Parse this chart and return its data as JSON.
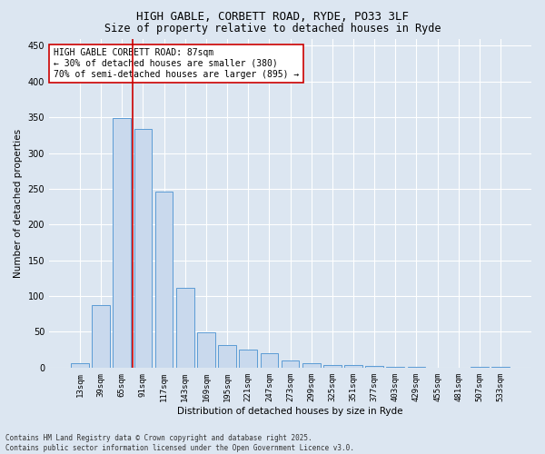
{
  "title1": "HIGH GABLE, CORBETT ROAD, RYDE, PO33 3LF",
  "title2": "Size of property relative to detached houses in Ryde",
  "xlabel": "Distribution of detached houses by size in Ryde",
  "ylabel": "Number of detached properties",
  "categories": [
    "13sqm",
    "39sqm",
    "65sqm",
    "91sqm",
    "117sqm",
    "143sqm",
    "169sqm",
    "195sqm",
    "221sqm",
    "247sqm",
    "273sqm",
    "299sqm",
    "325sqm",
    "351sqm",
    "377sqm",
    "403sqm",
    "429sqm",
    "455sqm",
    "481sqm",
    "507sqm",
    "533sqm"
  ],
  "values": [
    6,
    88,
    349,
    334,
    246,
    112,
    49,
    32,
    25,
    20,
    10,
    6,
    4,
    3,
    2,
    1,
    1,
    0,
    0,
    1,
    1
  ],
  "bar_color": "#c9d9ed",
  "bar_edge_color": "#5b9bd5",
  "vline_color": "#cc0000",
  "annotation_box_text": "HIGH GABLE CORBETT ROAD: 87sqm\n← 30% of detached houses are smaller (380)\n70% of semi-detached houses are larger (895) →",
  "annotation_box_color": "#ffffff",
  "annotation_box_edge_color": "#cc0000",
  "bg_color": "#dce6f1",
  "plot_bg_color": "#dce6f1",
  "grid_color": "#ffffff",
  "ylim": [
    0,
    460
  ],
  "yticks": [
    0,
    50,
    100,
    150,
    200,
    250,
    300,
    350,
    400,
    450
  ],
  "footer1": "Contains HM Land Registry data © Crown copyright and database right 2025.",
  "footer2": "Contains public sector information licensed under the Open Government Licence v3.0.",
  "title_fontsize": 9,
  "subtitle_fontsize": 8.5,
  "axis_label_fontsize": 7.5,
  "tick_fontsize": 6.5,
  "annotation_fontsize": 7,
  "footer_fontsize": 5.5
}
